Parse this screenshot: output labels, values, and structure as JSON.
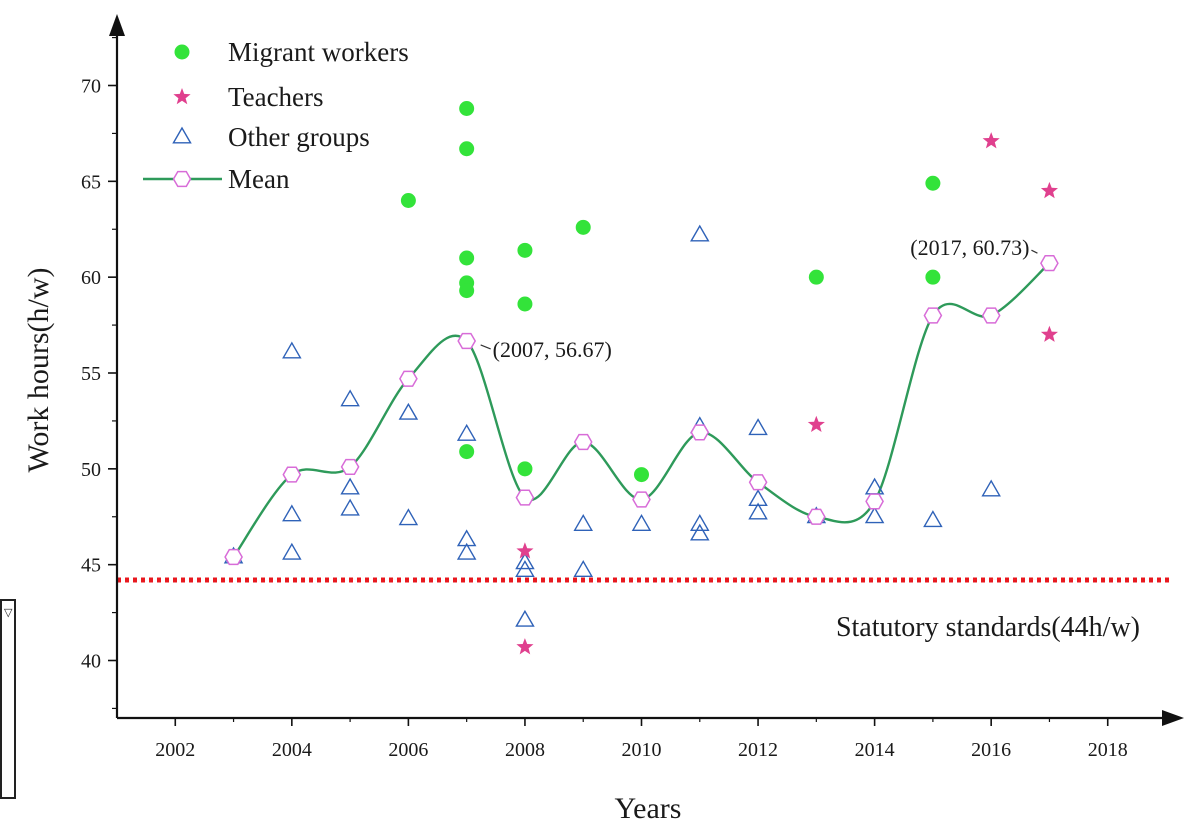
{
  "chart_data": {
    "type": "scatter",
    "xlabel": "Years",
    "ylabel": "Work hours(h/w)",
    "xlim": [
      2001,
      2019
    ],
    "ylim": [
      37,
      73
    ],
    "xticks": [
      2002,
      2004,
      2006,
      2008,
      2010,
      2012,
      2014,
      2016,
      2018
    ],
    "yticks": [
      40,
      45,
      50,
      55,
      60,
      65,
      70
    ],
    "grid": false,
    "legend_position": "top-left",
    "series": [
      {
        "name": "Migrant workers",
        "marker": "filled-circle",
        "color": "#33e33a",
        "points": [
          [
            2006,
            64.0
          ],
          [
            2007,
            68.8
          ],
          [
            2007,
            66.7
          ],
          [
            2007,
            61.0
          ],
          [
            2007,
            59.7
          ],
          [
            2007,
            59.3
          ],
          [
            2007,
            50.9
          ],
          [
            2008,
            61.4
          ],
          [
            2008,
            58.6
          ],
          [
            2008,
            50.0
          ],
          [
            2009,
            62.6
          ],
          [
            2010,
            49.7
          ],
          [
            2013,
            60.0
          ],
          [
            2015,
            64.9
          ],
          [
            2015,
            60.0
          ]
        ]
      },
      {
        "name": "Teachers",
        "marker": "star",
        "color": "#e0408e",
        "points": [
          [
            2008,
            45.7
          ],
          [
            2008,
            40.7
          ],
          [
            2013,
            52.3
          ],
          [
            2016,
            67.1
          ],
          [
            2017,
            64.5
          ],
          [
            2017,
            57.0
          ]
        ]
      },
      {
        "name": "Other groups",
        "marker": "open-triangle",
        "color": "#2f62b8",
        "points": [
          [
            2003,
            45.4
          ],
          [
            2004,
            56.1
          ],
          [
            2004,
            47.6
          ],
          [
            2004,
            45.6
          ],
          [
            2005,
            53.6
          ],
          [
            2005,
            49.0
          ],
          [
            2005,
            47.9
          ],
          [
            2006,
            52.9
          ],
          [
            2006,
            47.4
          ],
          [
            2007,
            51.8
          ],
          [
            2007,
            46.3
          ],
          [
            2007,
            45.6
          ],
          [
            2008,
            45.1
          ],
          [
            2008,
            44.7
          ],
          [
            2008,
            42.1
          ],
          [
            2009,
            47.1
          ],
          [
            2009,
            44.7
          ],
          [
            2010,
            47.1
          ],
          [
            2011,
            62.2
          ],
          [
            2011,
            52.2
          ],
          [
            2011,
            47.1
          ],
          [
            2011,
            46.6
          ],
          [
            2012,
            52.1
          ],
          [
            2012,
            48.4
          ],
          [
            2012,
            47.7
          ],
          [
            2013,
            47.5
          ],
          [
            2014,
            49.0
          ],
          [
            2014,
            47.5
          ],
          [
            2015,
            47.3
          ],
          [
            2016,
            48.9
          ]
        ]
      },
      {
        "name": "Mean",
        "marker": "open-hexagon-line",
        "color": "#2e9a5a",
        "marker_color": "#d86cd8",
        "points": [
          [
            2003,
            45.4
          ],
          [
            2004,
            49.7
          ],
          [
            2005,
            50.1
          ],
          [
            2006,
            54.7
          ],
          [
            2007,
            56.67
          ],
          [
            2008,
            48.5
          ],
          [
            2009,
            51.4
          ],
          [
            2010,
            48.4
          ],
          [
            2011,
            51.9
          ],
          [
            2012,
            49.3
          ],
          [
            2013,
            47.5
          ],
          [
            2014,
            48.3
          ],
          [
            2015,
            58.0
          ],
          [
            2016,
            58.0
          ],
          [
            2017,
            60.73
          ]
        ]
      }
    ],
    "annotations": [
      {
        "text": "(2007, 56.67)",
        "x": 2007,
        "y": 56.67
      },
      {
        "text": "(2017, 60.73)",
        "x": 2017,
        "y": 60.73
      }
    ],
    "reference_line": {
      "label": "Statutory standards(44h/w)",
      "y": 44.2,
      "color": "#e8191f"
    }
  }
}
